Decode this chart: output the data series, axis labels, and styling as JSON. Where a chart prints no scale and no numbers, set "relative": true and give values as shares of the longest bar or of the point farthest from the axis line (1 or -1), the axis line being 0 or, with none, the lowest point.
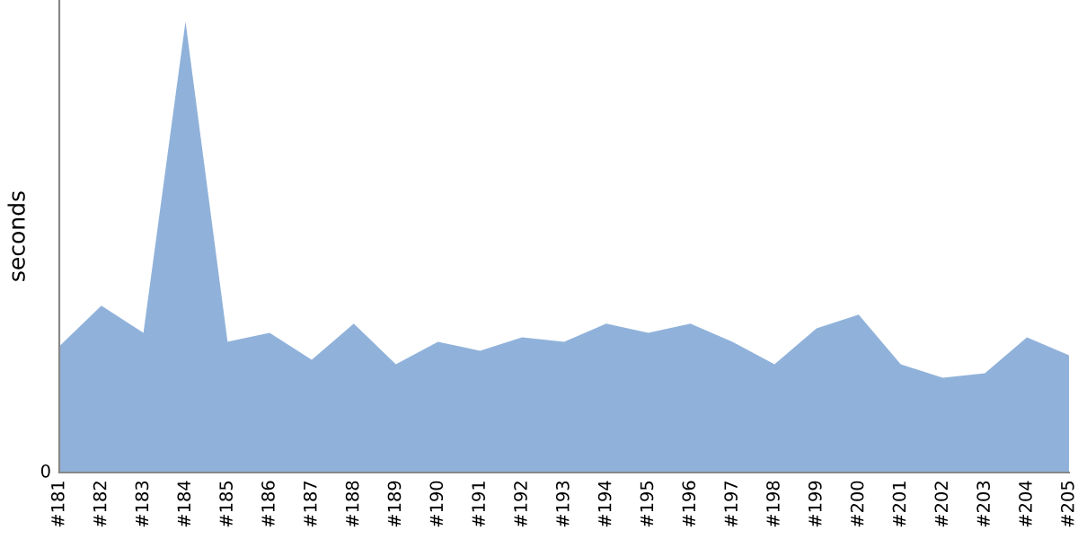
{
  "chart_data": {
    "type": "area",
    "ylabel": "seconds",
    "relative": true,
    "grid": false,
    "legend": false,
    "categories": [
      "#181",
      "#182",
      "#183",
      "#184",
      "#185",
      "#186",
      "#187",
      "#188",
      "#189",
      "#190",
      "#191",
      "#192",
      "#193",
      "#194",
      "#195",
      "#196",
      "#197",
      "#198",
      "#199",
      "#200",
      "#201",
      "#202",
      "#203",
      "#204",
      "#205"
    ],
    "series": [
      {
        "color": "#90b2da",
        "values": [
          0.28,
          0.37,
          0.31,
          1.0,
          0.29,
          0.31,
          0.25,
          0.33,
          0.24,
          0.29,
          0.27,
          0.3,
          0.29,
          0.33,
          0.31,
          0.33,
          0.29,
          0.24,
          0.32,
          0.35,
          0.24,
          0.21,
          0.22,
          0.3,
          0.26
        ]
      }
    ],
    "annotations": [
      "0"
    ]
  }
}
